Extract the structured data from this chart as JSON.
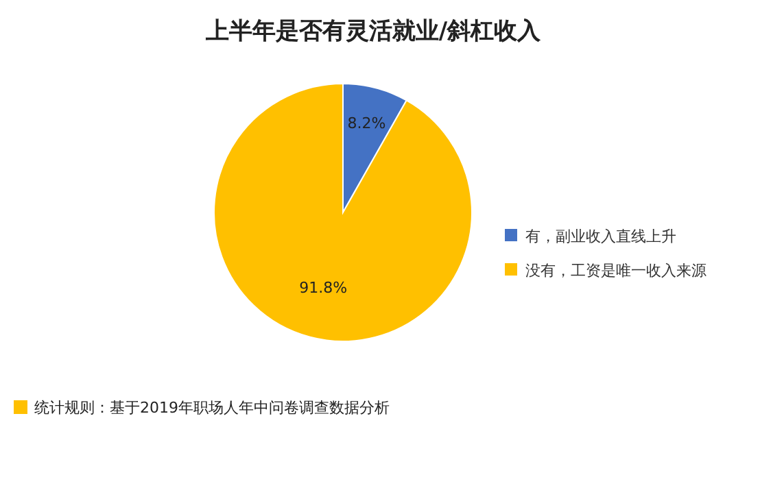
{
  "chart_data": {
    "type": "pie",
    "title": "上半年是否有灵活就业/斜杠收入",
    "categories": [
      "有，副业收入直线上升",
      "没有，工资是唯一收入来源"
    ],
    "values": [
      8.2,
      91.8
    ],
    "colors": [
      "#4472c4",
      "#ffc000"
    ],
    "value_labels": [
      "8.2%",
      "91.8%"
    ],
    "legend": "right",
    "annotations": [
      "统计规则：基于2019年职场人年中问卷调查数据分析"
    ]
  }
}
